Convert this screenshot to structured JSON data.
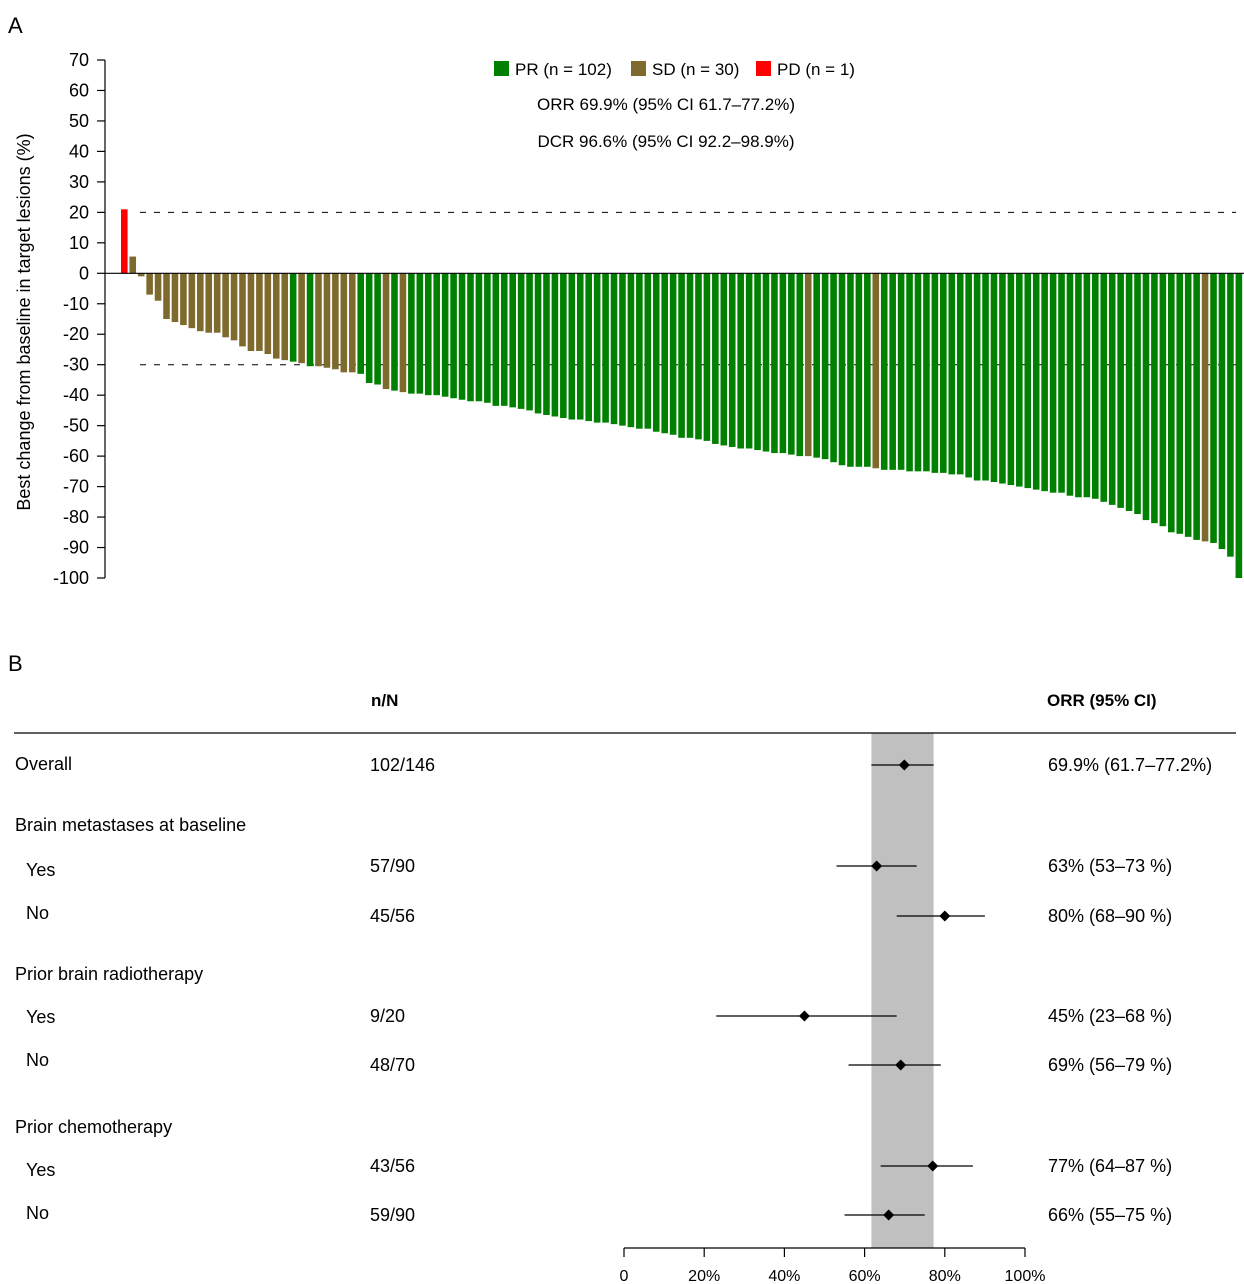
{
  "panel_a_label": "A",
  "panel_b_label": "B",
  "colors": {
    "PR": "#008000",
    "SD": "#7f6a2d",
    "PD": "#ff0000",
    "ci_band": "#c0c0c0"
  },
  "chart_data": [
    {
      "type": "bar",
      "panel": "A",
      "ylabel": "Best change from baseline in target lesions (%)",
      "ylim": [
        -100,
        70
      ],
      "yticks": [
        70,
        60,
        50,
        40,
        30,
        20,
        10,
        0,
        -10,
        -20,
        -30,
        -40,
        -50,
        -60,
        -70,
        -80,
        -90,
        -100
      ],
      "reference_lines": [
        20,
        -30
      ],
      "legend": [
        {
          "key": "PR",
          "label": "PR (n = 102)"
        },
        {
          "key": "SD",
          "label": "SD (n = 30)"
        },
        {
          "key": "PD",
          "label": "PD (n = 1)"
        }
      ],
      "annotations": [
        "ORR 69.9% (95% CI 61.7–77.2%)",
        "DCR 96.6% (95% CI 92.2–98.9%)"
      ],
      "bars": [
        {
          "v": 21,
          "c": "PD"
        },
        {
          "v": 5.5,
          "c": "SD"
        },
        {
          "v": -1,
          "c": "SD"
        },
        {
          "v": -7,
          "c": "SD"
        },
        {
          "v": -9,
          "c": "SD"
        },
        {
          "v": -15,
          "c": "SD"
        },
        {
          "v": -16,
          "c": "SD"
        },
        {
          "v": -17,
          "c": "SD"
        },
        {
          "v": -18,
          "c": "SD"
        },
        {
          "v": -19,
          "c": "SD"
        },
        {
          "v": -19.5,
          "c": "SD"
        },
        {
          "v": -19.5,
          "c": "SD"
        },
        {
          "v": -21,
          "c": "SD"
        },
        {
          "v": -22,
          "c": "SD"
        },
        {
          "v": -24,
          "c": "SD"
        },
        {
          "v": -25.5,
          "c": "SD"
        },
        {
          "v": -25.5,
          "c": "SD"
        },
        {
          "v": -26.5,
          "c": "SD"
        },
        {
          "v": -28,
          "c": "SD"
        },
        {
          "v": -28.5,
          "c": "SD"
        },
        {
          "v": -29,
          "c": "PR"
        },
        {
          "v": -29.5,
          "c": "SD"
        },
        {
          "v": -30.5,
          "c": "PR"
        },
        {
          "v": -30.5,
          "c": "SD"
        },
        {
          "v": -31,
          "c": "SD"
        },
        {
          "v": -31.5,
          "c": "SD"
        },
        {
          "v": -32.5,
          "c": "SD"
        },
        {
          "v": -32.5,
          "c": "SD"
        },
        {
          "v": -33,
          "c": "PR"
        },
        {
          "v": -36,
          "c": "PR"
        },
        {
          "v": -36.5,
          "c": "PR"
        },
        {
          "v": -38,
          "c": "SD"
        },
        {
          "v": -38.5,
          "c": "PR"
        },
        {
          "v": -39,
          "c": "SD"
        },
        {
          "v": -39.5,
          "c": "PR"
        },
        {
          "v": -39.5,
          "c": "PR"
        },
        {
          "v": -40,
          "c": "PR"
        },
        {
          "v": -40,
          "c": "PR"
        },
        {
          "v": -40.5,
          "c": "PR"
        },
        {
          "v": -41,
          "c": "PR"
        },
        {
          "v": -41.5,
          "c": "PR"
        },
        {
          "v": -42,
          "c": "PR"
        },
        {
          "v": -42,
          "c": "PR"
        },
        {
          "v": -42.5,
          "c": "PR"
        },
        {
          "v": -43.5,
          "c": "PR"
        },
        {
          "v": -43.5,
          "c": "PR"
        },
        {
          "v": -44,
          "c": "PR"
        },
        {
          "v": -44.5,
          "c": "PR"
        },
        {
          "v": -45,
          "c": "PR"
        },
        {
          "v": -46,
          "c": "PR"
        },
        {
          "v": -46.5,
          "c": "PR"
        },
        {
          "v": -47,
          "c": "PR"
        },
        {
          "v": -47.5,
          "c": "PR"
        },
        {
          "v": -48,
          "c": "PR"
        },
        {
          "v": -48,
          "c": "PR"
        },
        {
          "v": -48.5,
          "c": "PR"
        },
        {
          "v": -49,
          "c": "PR"
        },
        {
          "v": -49,
          "c": "PR"
        },
        {
          "v": -49.5,
          "c": "PR"
        },
        {
          "v": -50,
          "c": "PR"
        },
        {
          "v": -50.5,
          "c": "PR"
        },
        {
          "v": -51,
          "c": "PR"
        },
        {
          "v": -51,
          "c": "PR"
        },
        {
          "v": -52,
          "c": "PR"
        },
        {
          "v": -52.5,
          "c": "PR"
        },
        {
          "v": -53,
          "c": "PR"
        },
        {
          "v": -54,
          "c": "PR"
        },
        {
          "v": -54,
          "c": "PR"
        },
        {
          "v": -54.5,
          "c": "PR"
        },
        {
          "v": -55,
          "c": "PR"
        },
        {
          "v": -56,
          "c": "PR"
        },
        {
          "v": -56.5,
          "c": "PR"
        },
        {
          "v": -57,
          "c": "PR"
        },
        {
          "v": -57.5,
          "c": "PR"
        },
        {
          "v": -57.5,
          "c": "PR"
        },
        {
          "v": -58,
          "c": "PR"
        },
        {
          "v": -58.5,
          "c": "PR"
        },
        {
          "v": -59,
          "c": "PR"
        },
        {
          "v": -59,
          "c": "PR"
        },
        {
          "v": -59.5,
          "c": "PR"
        },
        {
          "v": -60,
          "c": "PR"
        },
        {
          "v": -60,
          "c": "SD"
        },
        {
          "v": -60.5,
          "c": "PR"
        },
        {
          "v": -61,
          "c": "PR"
        },
        {
          "v": -62,
          "c": "PR"
        },
        {
          "v": -63,
          "c": "PR"
        },
        {
          "v": -63.5,
          "c": "PR"
        },
        {
          "v": -63.5,
          "c": "PR"
        },
        {
          "v": -63.5,
          "c": "PR"
        },
        {
          "v": -64,
          "c": "SD"
        },
        {
          "v": -64.5,
          "c": "PR"
        },
        {
          "v": -64.5,
          "c": "PR"
        },
        {
          "v": -64.5,
          "c": "PR"
        },
        {
          "v": -65,
          "c": "PR"
        },
        {
          "v": -65,
          "c": "PR"
        },
        {
          "v": -65,
          "c": "PR"
        },
        {
          "v": -65.5,
          "c": "PR"
        },
        {
          "v": -65.5,
          "c": "PR"
        },
        {
          "v": -66,
          "c": "PR"
        },
        {
          "v": -66,
          "c": "PR"
        },
        {
          "v": -67,
          "c": "PR"
        },
        {
          "v": -68,
          "c": "PR"
        },
        {
          "v": -68,
          "c": "PR"
        },
        {
          "v": -68.5,
          "c": "PR"
        },
        {
          "v": -69,
          "c": "PR"
        },
        {
          "v": -69.5,
          "c": "PR"
        },
        {
          "v": -70,
          "c": "PR"
        },
        {
          "v": -70.5,
          "c": "PR"
        },
        {
          "v": -71,
          "c": "PR"
        },
        {
          "v": -71.5,
          "c": "PR"
        },
        {
          "v": -72,
          "c": "PR"
        },
        {
          "v": -72,
          "c": "PR"
        },
        {
          "v": -73,
          "c": "PR"
        },
        {
          "v": -73.5,
          "c": "PR"
        },
        {
          "v": -73.5,
          "c": "PR"
        },
        {
          "v": -74,
          "c": "PR"
        },
        {
          "v": -75,
          "c": "PR"
        },
        {
          "v": -76,
          "c": "PR"
        },
        {
          "v": -77,
          "c": "PR"
        },
        {
          "v": -78,
          "c": "PR"
        },
        {
          "v": -79,
          "c": "PR"
        },
        {
          "v": -81,
          "c": "PR"
        },
        {
          "v": -82,
          "c": "PR"
        },
        {
          "v": -83,
          "c": "PR"
        },
        {
          "v": -85,
          "c": "PR"
        },
        {
          "v": -85.5,
          "c": "PR"
        },
        {
          "v": -86.5,
          "c": "PR"
        },
        {
          "v": -87.5,
          "c": "PR"
        },
        {
          "v": -88,
          "c": "SD"
        },
        {
          "v": -88.5,
          "c": "PR"
        },
        {
          "v": -90.5,
          "c": "PR"
        },
        {
          "v": -93,
          "c": "PR"
        },
        {
          "v": -100,
          "c": "PR"
        }
      ]
    },
    {
      "type": "forest",
      "panel": "B",
      "headers": {
        "n": "n/N",
        "orr": "ORR (95% CI)"
      },
      "xlim": [
        0,
        100
      ],
      "xticks": [
        0,
        20,
        40,
        60,
        80,
        100
      ],
      "xtick_labels": [
        "0",
        "20%",
        "40%",
        "60%",
        "80%",
        "100%"
      ],
      "overall_ci_band": [
        61.7,
        77.2
      ],
      "rows": [
        {
          "label": "Overall",
          "n": "102/146",
          "est": 69.9,
          "lo": 61.7,
          "hi": 77.2,
          "text": "69.9% (61.7–77.2%)"
        },
        {
          "label": "Brain metastases at baseline",
          "header": true
        },
        {
          "label": "Yes",
          "n": "57/90",
          "est": 63,
          "lo": 53,
          "hi": 73,
          "text": "63% (53–73 %)"
        },
        {
          "label": "No",
          "n": "45/56",
          "est": 80,
          "lo": 68,
          "hi": 90,
          "text": "80% (68–90 %)"
        },
        {
          "label": "Prior brain radiotherapy",
          "header": true
        },
        {
          "label": "Yes",
          "n": "9/20",
          "est": 45,
          "lo": 23,
          "hi": 68,
          "text": "45% (23–68 %)"
        },
        {
          "label": "No",
          "n": "48/70",
          "est": 69,
          "lo": 56,
          "hi": 79,
          "text": "69% (56–79 %)"
        },
        {
          "label": "Prior chemotherapy",
          "header": true
        },
        {
          "label": "Yes",
          "n": "43/56",
          "est": 77,
          "lo": 64,
          "hi": 87,
          "text": "77% (64–87 %)"
        },
        {
          "label": "No",
          "n": "59/90",
          "est": 66,
          "lo": 55,
          "hi": 75,
          "text": "66% (55–75 %)"
        }
      ]
    }
  ]
}
